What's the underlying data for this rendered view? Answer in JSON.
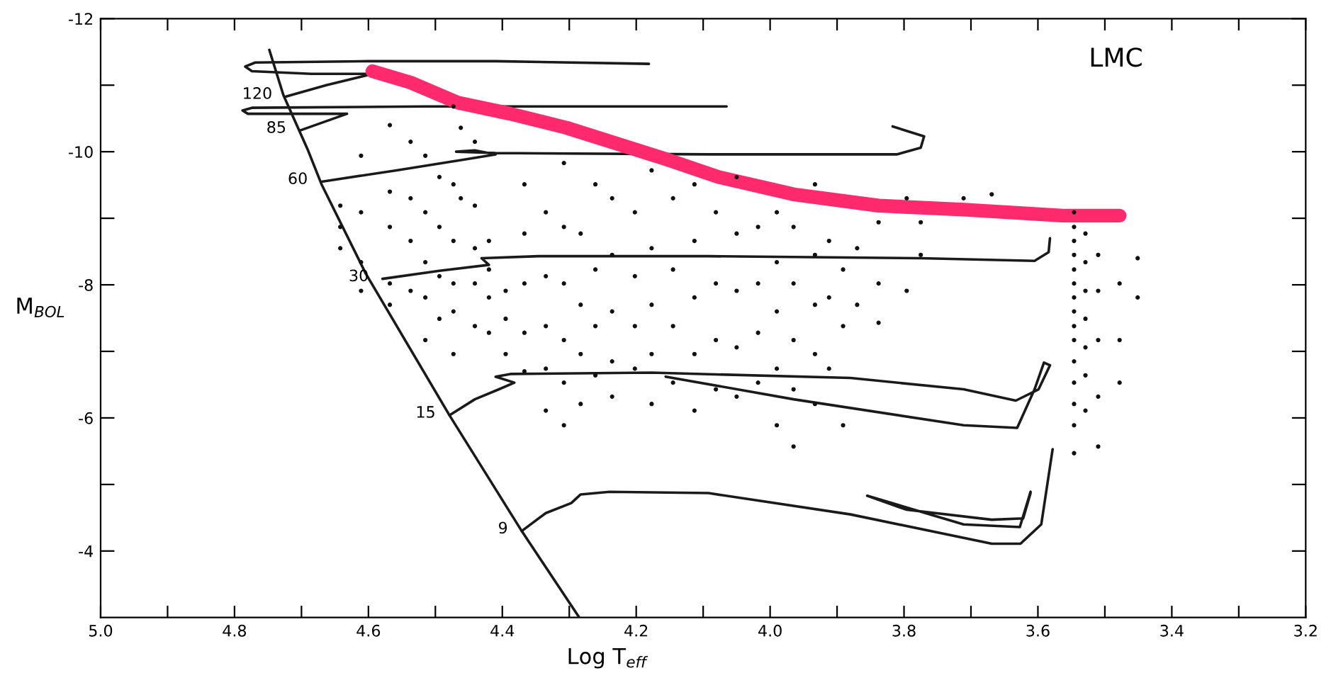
{
  "chart_data": {
    "type": "line",
    "xlabel": "Log T$_{eff}$",
    "ylabel": "M$_{BOL}$",
    "annotations": [
      "LMC"
    ],
    "xlim": [
      5.0,
      3.2
    ],
    "ylim": [
      -3,
      -12
    ],
    "xticks": [
      {
        "value": 5.0,
        "label": "5.0"
      },
      {
        "value": 4.9,
        "label": null
      },
      4.8,
      {
        "value": 4.7,
        "label": null
      },
      4.6,
      {
        "value": 4.5,
        "label": null
      },
      4.4,
      {
        "value": 4.3,
        "label": null
      },
      4.2,
      {
        "value": 4.1,
        "label": null
      },
      {
        "value": 4.0,
        "label": "4.0"
      },
      {
        "value": 3.9,
        "label": null
      },
      3.8,
      {
        "value": 3.7,
        "label": null
      },
      3.6,
      {
        "value": 3.5,
        "label": null
      },
      3.4,
      {
        "value": 3.3,
        "label": null
      },
      3.2
    ],
    "yticks": [
      -12,
      {
        "value": -11,
        "label": null
      },
      -10,
      {
        "value": -9,
        "label": null
      },
      -8,
      {
        "value": -7,
        "label": null
      },
      -6,
      {
        "value": -5,
        "label": null
      },
      -4
    ],
    "grid": false,
    "legend": false,
    "marker": "none",
    "line_style": "solid",
    "series": [
      {
        "color": "#1a1a1a",
        "x": [
          4.748,
          4.727,
          4.691,
          4.67,
          4.604,
          4.479,
          4.371,
          4.285
        ],
        "values": [
          -11.53,
          -10.85,
          -10.04,
          -9.51,
          -8.17,
          -6.04,
          -4.3,
          -3.0
        ]
      },
      {
        "name": "120",
        "color": "#1a1a1a",
        "x": [
          4.723,
          4.663,
          4.594,
          4.685,
          4.774,
          4.784,
          4.769,
          4.6,
          4.41,
          4.181
        ],
        "values": [
          -10.83,
          -11.0,
          -11.17,
          -11.17,
          -11.21,
          -11.28,
          -11.34,
          -11.36,
          -11.36,
          -11.32
        ]
      },
      {
        "name": "85",
        "color": "#1a1a1a",
        "x": [
          4.702,
          4.632,
          4.664,
          4.78,
          4.788,
          4.774,
          4.515,
          4.065
        ],
        "values": [
          -10.32,
          -10.57,
          -10.57,
          -10.57,
          -10.62,
          -10.66,
          -10.68,
          -10.68
        ]
      },
      {
        "name": "60",
        "color": "#1a1a1a",
        "x": [
          4.67,
          4.558,
          4.452,
          4.41,
          4.441,
          4.469,
          4.41,
          4.092,
          3.811,
          3.775,
          3.77,
          3.817
        ],
        "values": [
          -9.55,
          -9.72,
          -9.89,
          -9.96,
          -10.02,
          -10.0,
          -9.98,
          -9.96,
          -9.96,
          -10.06,
          -10.23,
          -10.38
        ]
      },
      {
        "name": "30",
        "color": "#1a1a1a",
        "x": [
          4.579,
          4.494,
          4.42,
          4.431,
          4.346,
          4.092,
          3.775,
          3.605,
          3.584,
          3.582
        ],
        "values": [
          -8.09,
          -8.21,
          -8.3,
          -8.4,
          -8.43,
          -8.43,
          -8.4,
          -8.36,
          -8.49,
          -8.7
        ]
      },
      {
        "name": "15",
        "color": "#1a1a1a",
        "x": [
          4.479,
          4.441,
          4.405,
          4.382,
          4.41,
          4.388,
          4.177,
          3.88,
          3.711,
          3.633,
          3.599,
          3.582,
          3.591,
          3.605,
          3.631,
          3.711,
          3.965,
          4.156
        ],
        "values": [
          -6.04,
          -6.28,
          -6.43,
          -6.53,
          -6.62,
          -6.66,
          -6.68,
          -6.6,
          -6.43,
          -6.26,
          -6.43,
          -6.79,
          -6.83,
          -6.43,
          -5.85,
          -5.89,
          -6.28,
          -6.62
        ]
      },
      {
        "name": "9",
        "color": "#1a1a1a",
        "x": [
          4.371,
          4.335,
          4.297,
          4.283,
          4.24,
          4.092,
          3.88,
          3.669,
          3.626,
          3.595,
          3.578
        ],
        "values": [
          -4.3,
          -4.57,
          -4.72,
          -4.85,
          -4.89,
          -4.87,
          -4.55,
          -4.11,
          -4.11,
          -4.4,
          -5.53
        ]
      },
      {
        "color": "#1a1a1a",
        "x": [
          3.611,
          3.627,
          3.711,
          3.855,
          3.796,
          3.669,
          3.622,
          3.611
        ],
        "values": [
          -4.89,
          -4.36,
          -4.4,
          -4.83,
          -4.62,
          -4.47,
          -4.49,
          -4.87
        ]
      },
      {
        "type": "scatter",
        "marker": "circle",
        "color": "#111111",
        "x": [
          4.642,
          4.642,
          4.642,
          4.611,
          4.611,
          4.611,
          4.611,
          4.568,
          4.568,
          4.568,
          4.568,
          4.568,
          4.537,
          4.537,
          4.537,
          4.537,
          4.515,
          4.515,
          4.515,
          4.515,
          4.515,
          4.494,
          4.494,
          4.494,
          4.494,
          4.473,
          4.473,
          4.473,
          4.473,
          4.473,
          4.473,
          4.462,
          4.462,
          4.441,
          4.441,
          4.441,
          4.441,
          4.441,
          4.42,
          4.42,
          4.42,
          4.42,
          4.395,
          4.395,
          4.395,
          4.367,
          4.367,
          4.367,
          4.367,
          4.367,
          4.335,
          4.335,
          4.335,
          4.335,
          4.335,
          4.308,
          4.308,
          4.308,
          4.308,
          4.308,
          4.308,
          4.283,
          4.283,
          4.283,
          4.283,
          4.261,
          4.261,
          4.261,
          4.261,
          4.236,
          4.236,
          4.236,
          4.236,
          4.236,
          4.202,
          4.202,
          4.202,
          4.202,
          4.177,
          4.177,
          4.177,
          4.177,
          4.177,
          4.145,
          4.145,
          4.145,
          4.145,
          4.113,
          4.113,
          4.113,
          4.113,
          4.113,
          4.081,
          4.081,
          4.081,
          4.081,
          4.05,
          4.05,
          4.05,
          4.05,
          4.05,
          4.018,
          4.018,
          4.018,
          4.018,
          3.99,
          3.99,
          3.99,
          3.99,
          3.99,
          3.965,
          3.965,
          3.965,
          3.965,
          3.965,
          3.933,
          3.933,
          3.933,
          3.933,
          3.933,
          3.912,
          3.912,
          3.912,
          3.891,
          3.891,
          3.891,
          3.87,
          3.87,
          3.838,
          3.838,
          3.838,
          3.796,
          3.796,
          3.775,
          3.775,
          3.711,
          3.669,
          3.546,
          3.546,
          3.546,
          3.546,
          3.546,
          3.546,
          3.546,
          3.546,
          3.546,
          3.546,
          3.546,
          3.546,
          3.546,
          3.546,
          3.546,
          3.529,
          3.529,
          3.529,
          3.529,
          3.529,
          3.529,
          3.529,
          3.51,
          3.51,
          3.51,
          3.51,
          3.51,
          3.478,
          3.478,
          3.478,
          3.451,
          3.451
        ],
        "values": [
          -9.19,
          -8.87,
          -8.55,
          -9.94,
          -9.09,
          -8.34,
          -7.91,
          -10.4,
          -9.4,
          -8.87,
          -8.02,
          -7.7,
          -10.15,
          -9.3,
          -8.66,
          -7.91,
          -9.94,
          -9.09,
          -8.34,
          -7.81,
          -7.17,
          -9.62,
          -8.87,
          -8.13,
          -7.49,
          -10.68,
          -9.51,
          -8.66,
          -8.02,
          -7.6,
          -6.96,
          -10.36,
          -9.3,
          -10.15,
          -9.19,
          -8.55,
          -8.02,
          -7.38,
          -8.66,
          -8.23,
          -7.81,
          -7.28,
          -7.91,
          -7.49,
          -6.96,
          -9.51,
          -8.77,
          -8.02,
          -7.28,
          -6.7,
          -9.09,
          -8.13,
          -7.38,
          -6.74,
          -6.11,
          -9.83,
          -8.87,
          -8.02,
          -7.17,
          -6.53,
          -5.89,
          -8.77,
          -7.7,
          -6.96,
          -6.21,
          -9.51,
          -8.23,
          -7.38,
          -6.64,
          -9.3,
          -8.45,
          -7.6,
          -6.85,
          -6.32,
          -9.09,
          -8.13,
          -7.38,
          -6.74,
          -9.72,
          -8.55,
          -7.7,
          -6.96,
          -6.21,
          -9.3,
          -8.23,
          -7.38,
          -6.53,
          -9.51,
          -8.66,
          -7.81,
          -6.96,
          -6.11,
          -9.09,
          -8.02,
          -7.17,
          -6.43,
          -9.62,
          -8.77,
          -7.91,
          -7.06,
          -6.32,
          -8.87,
          -8.02,
          -7.28,
          -6.53,
          -9.09,
          -8.34,
          -7.6,
          -6.74,
          -5.89,
          -8.87,
          -8.02,
          -7.17,
          -6.43,
          -5.57,
          -9.51,
          -8.45,
          -7.7,
          -6.96,
          -6.21,
          -8.66,
          -7.81,
          -6.74,
          -8.23,
          -7.38,
          -5.89,
          -8.55,
          -7.7,
          -8.94,
          -8.02,
          -7.43,
          -9.3,
          -7.91,
          -8.94,
          -8.45,
          -9.3,
          -9.36,
          -9.09,
          -8.87,
          -8.66,
          -8.45,
          -8.23,
          -8.02,
          -7.81,
          -7.6,
          -7.38,
          -7.17,
          -6.85,
          -6.53,
          -6.21,
          -5.89,
          -5.47,
          -8.77,
          -8.34,
          -7.91,
          -7.49,
          -7.06,
          -6.64,
          -6.11,
          -8.45,
          -7.91,
          -7.17,
          -6.32,
          -5.57,
          -8.02,
          -7.17,
          -6.53,
          -8.4,
          -7.81
        ]
      },
      {
        "color": "#ff2a6d",
        "x": [
          4.594,
          4.537,
          4.467,
          4.388,
          4.304,
          4.156,
          4.077,
          3.965,
          3.838,
          3.711,
          3.563,
          3.478
        ],
        "values": [
          -11.21,
          -11.04,
          -10.74,
          -10.57,
          -10.36,
          -9.89,
          -9.62,
          -9.36,
          -9.19,
          -9.13,
          -9.04,
          -9.04
        ]
      }
    ]
  }
}
